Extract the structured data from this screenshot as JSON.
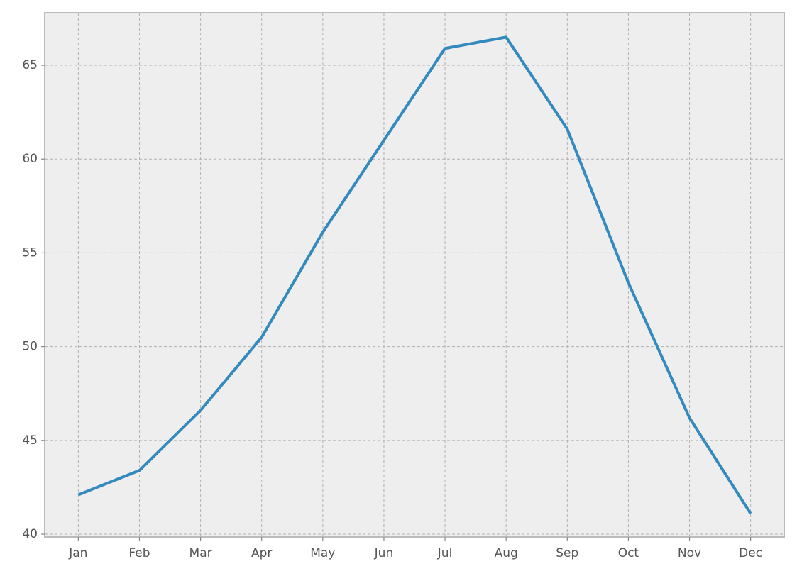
{
  "chart_data": {
    "type": "line",
    "categories": [
      "Jan",
      "Feb",
      "Mar",
      "Apr",
      "May",
      "Jun",
      "Jul",
      "Aug",
      "Sep",
      "Oct",
      "Nov",
      "Dec"
    ],
    "series": [
      {
        "color": "#348abd",
        "values": [
          42.1,
          43.4,
          46.6,
          50.5,
          56.1,
          61.0,
          65.9,
          66.5,
          61.6,
          53.4,
          46.2,
          41.1
        ]
      }
    ],
    "ylim": [
      39.85,
      67.8
    ],
    "yticks": [
      40,
      45,
      50,
      55,
      60,
      65
    ],
    "grid": true
  }
}
